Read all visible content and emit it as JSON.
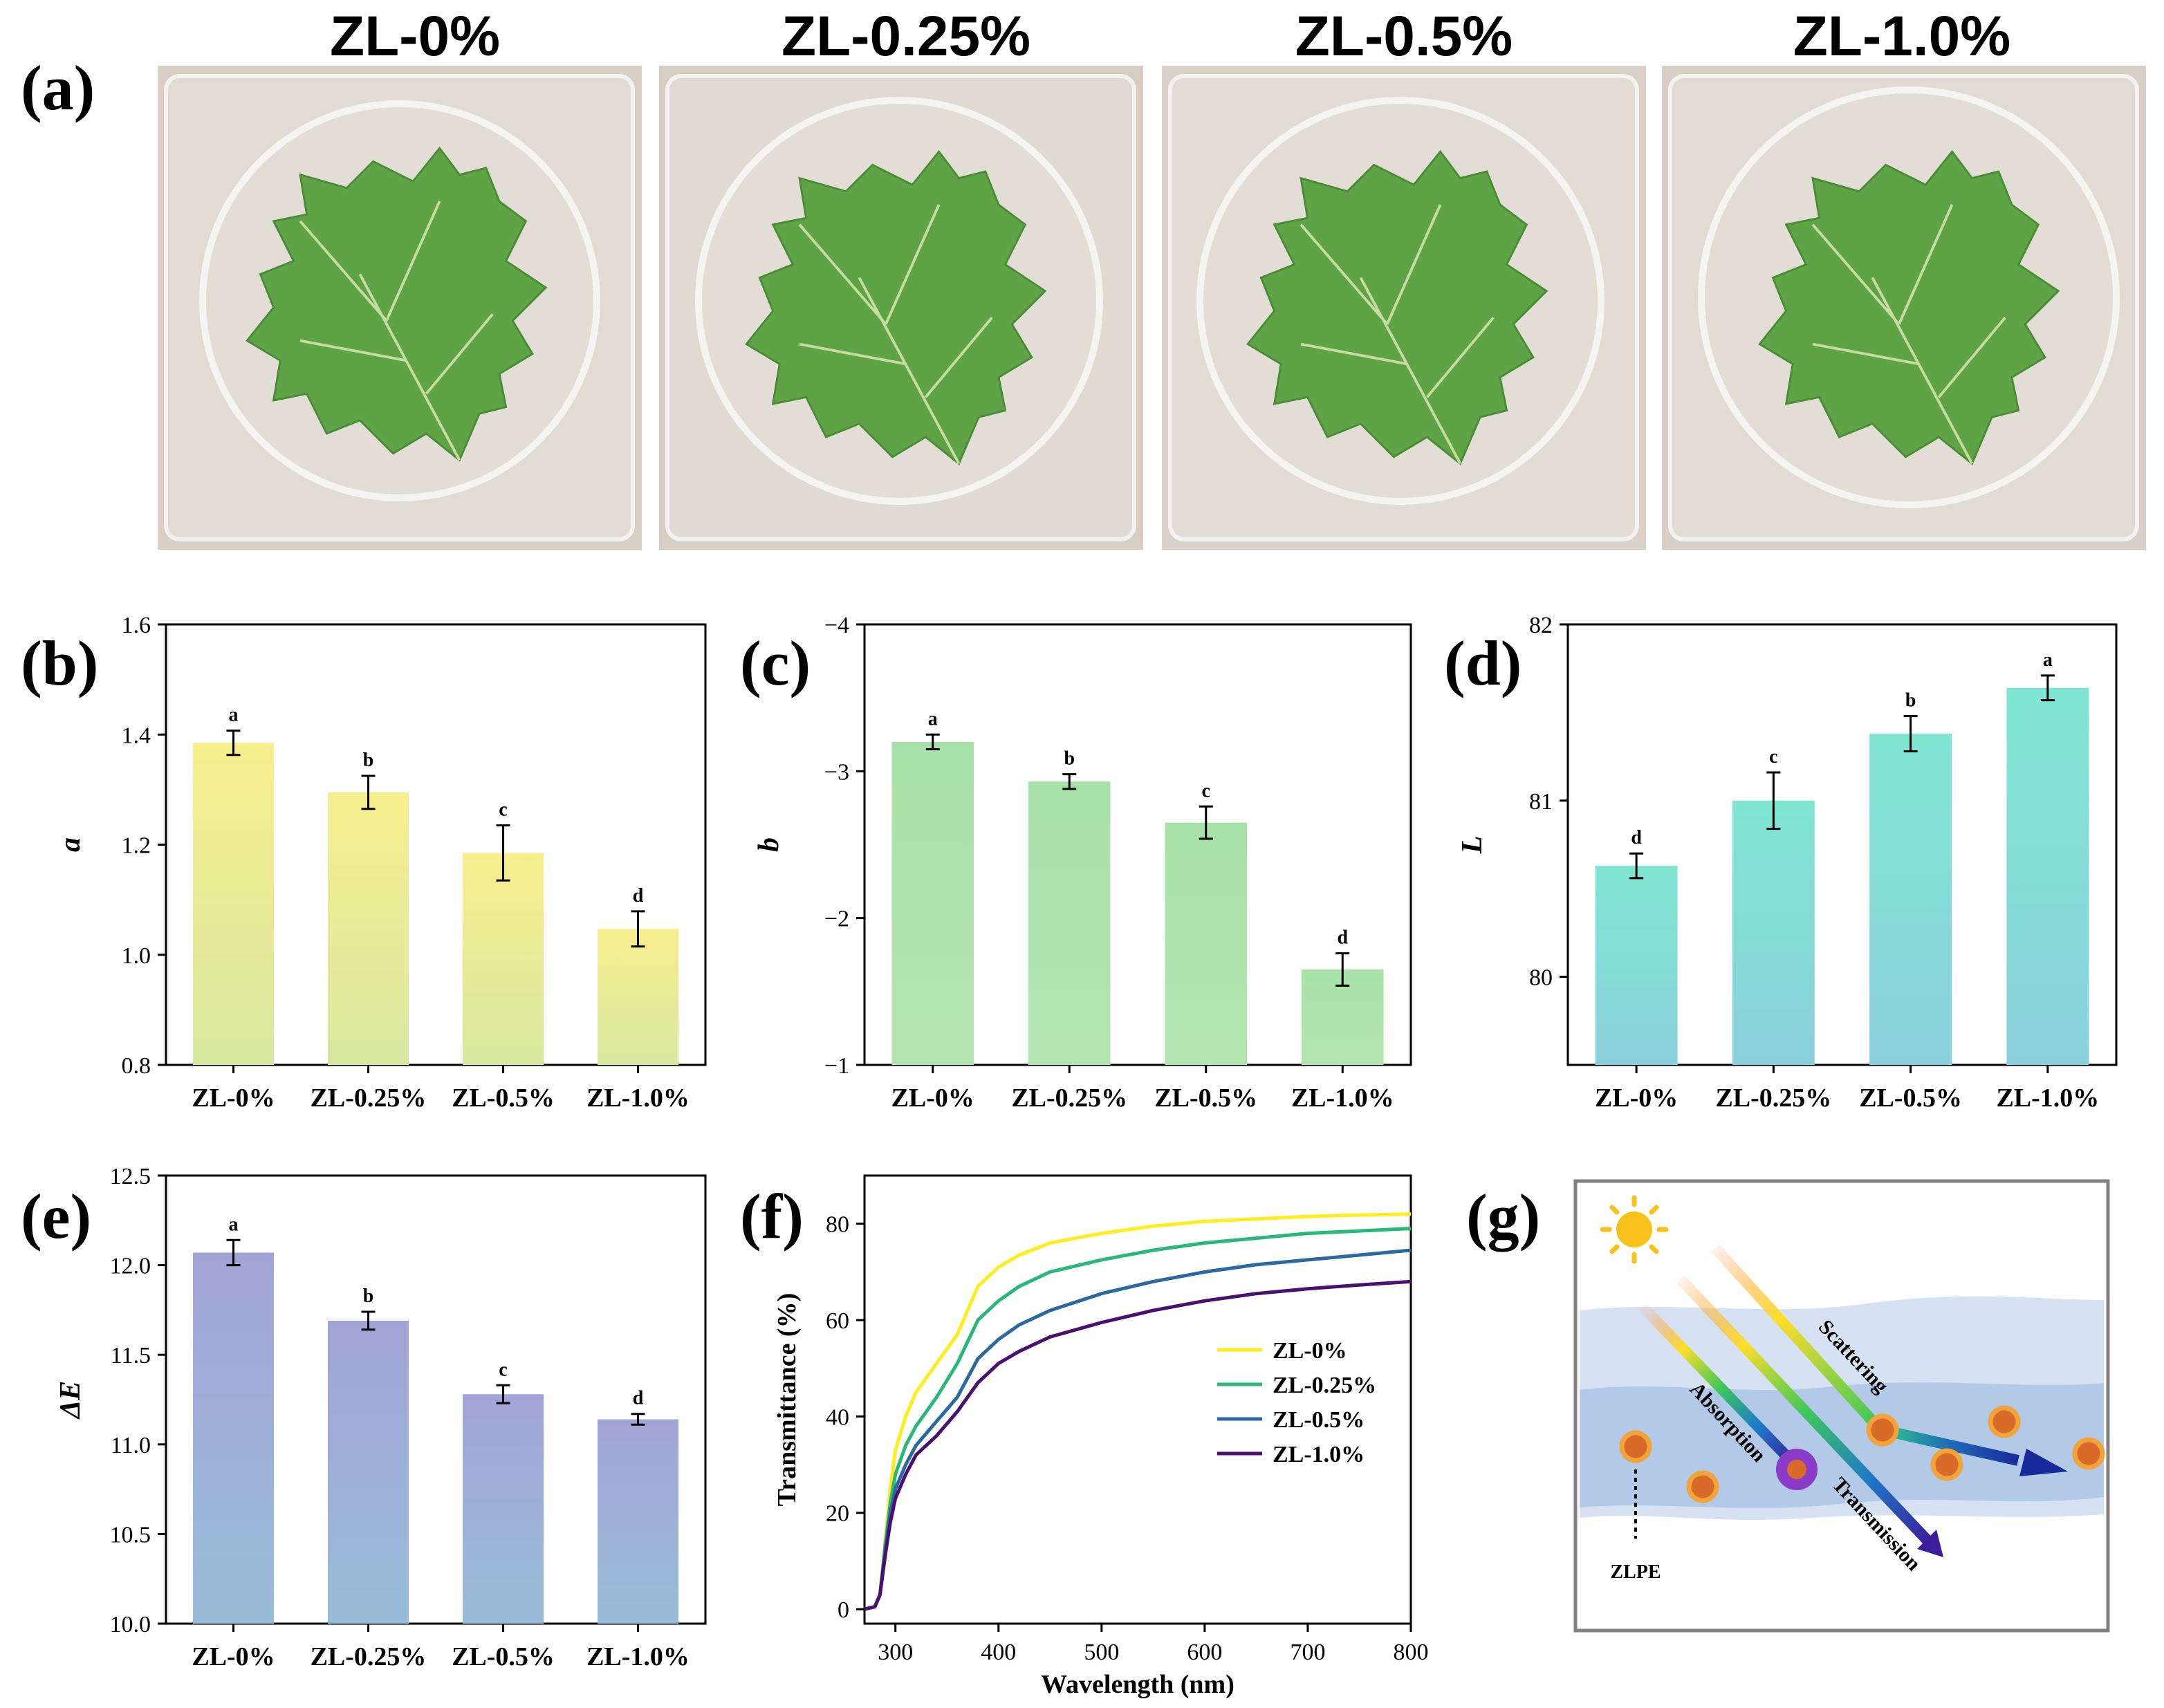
{
  "panel_labels": [
    "(a)",
    "(b)",
    "(c)",
    "(d)",
    "(e)",
    "(f)",
    "(g)"
  ],
  "photos": {
    "titles": [
      "ZL-0%",
      "ZL-0.25%",
      "ZL-0.5%",
      "ZL-1.0%"
    ],
    "colors": {
      "background": "#d8d0c5",
      "leaf": "#5ea446",
      "leaf_dark": "#4a8c36",
      "vein": "#c8dca0"
    }
  },
  "chart_data": [
    {
      "id": "b",
      "type": "bar",
      "categories": [
        "ZL-0%",
        "ZL-0.25%",
        "ZL-0.5%",
        "ZL-1.0%"
      ],
      "values": [
        1.385,
        1.295,
        1.185,
        1.047
      ],
      "errors": [
        0.022,
        0.03,
        0.05,
        0.032
      ],
      "letters": [
        "a",
        "b",
        "c",
        "d"
      ],
      "ylabel": "a",
      "ylim": [
        0.8,
        1.6
      ],
      "yticks": [
        0.8,
        1.0,
        1.2,
        1.4,
        1.6
      ],
      "ytick_labels": [
        "0.8",
        "1.0",
        "1.2",
        "1.4",
        "1.6"
      ],
      "reversed": false,
      "colors": {
        "top": "#f7ee8e",
        "bottom": "#d8e8a0"
      }
    },
    {
      "id": "c",
      "type": "bar",
      "categories": [
        "ZL-0%",
        "ZL-0.25%",
        "ZL-0.5%",
        "ZL-1.0%"
      ],
      "values": [
        -3.2,
        -2.93,
        -2.65,
        -1.65
      ],
      "errors": [
        0.05,
        0.05,
        0.11,
        0.11
      ],
      "letters": [
        "a",
        "b",
        "c",
        "d"
      ],
      "ylabel": "b",
      "ylim": [
        -1,
        -4
      ],
      "yticks": [
        -1,
        -2,
        -3,
        -4
      ],
      "ytick_labels": [
        "−1",
        "−2",
        "−3",
        "−4"
      ],
      "reversed": true,
      "colors": {
        "top": "#a8e2a8",
        "bottom": "#b2e4b2"
      }
    },
    {
      "id": "d",
      "type": "bar",
      "categories": [
        "ZL-0%",
        "ZL-0.25%",
        "ZL-0.5%",
        "ZL-1.0%"
      ],
      "values": [
        80.63,
        81.0,
        81.38,
        81.64
      ],
      "errors": [
        0.07,
        0.16,
        0.1,
        0.07
      ],
      "letters": [
        "d",
        "c",
        "b",
        "a"
      ],
      "ylabel": "L",
      "ylim": [
        79.5,
        82
      ],
      "yticks": [
        80,
        81,
        82
      ],
      "ytick_labels": [
        "80",
        "81",
        "82"
      ],
      "reversed": false,
      "colors": {
        "top": "#80e6d2",
        "bottom": "#8ad0dc"
      }
    },
    {
      "id": "e",
      "type": "bar",
      "categories": [
        "ZL-0%",
        "ZL-0.25%",
        "ZL-0.5%",
        "ZL-1.0%"
      ],
      "values": [
        12.07,
        11.69,
        11.28,
        11.14
      ],
      "errors": [
        0.07,
        0.05,
        0.05,
        0.03
      ],
      "letters": [
        "a",
        "b",
        "c",
        "d"
      ],
      "ylabel": "ΔE",
      "ylim": [
        10.0,
        12.5
      ],
      "yticks": [
        10.0,
        10.5,
        11.0,
        11.5,
        12.0,
        12.5
      ],
      "ytick_labels": [
        "10.0",
        "10.5",
        "11.0",
        "11.5",
        "12.0",
        "12.5"
      ],
      "reversed": false,
      "colors": {
        "top": "#a2a4d6",
        "bottom": "#98bcd8"
      }
    },
    {
      "id": "f",
      "type": "line",
      "xlabel": "Wavelength (nm)",
      "ylabel": "Transmittance (%)",
      "xlim": [
        270,
        800
      ],
      "ylim": [
        -3,
        90
      ],
      "xticks": [
        300,
        400,
        500,
        600,
        700,
        800
      ],
      "xtick_labels": [
        "300",
        "400",
        "500",
        "600",
        "700",
        "800"
      ],
      "yticks": [
        0,
        20,
        40,
        60,
        80
      ],
      "ytick_labels": [
        "0",
        "20",
        "40",
        "60",
        "80"
      ],
      "x": [
        270,
        280,
        285,
        290,
        295,
        300,
        310,
        320,
        340,
        360,
        380,
        390,
        400,
        420,
        450,
        500,
        550,
        600,
        650,
        700,
        750,
        800
      ],
      "series": [
        {
          "name": "ZL-0%",
          "color": "#ffee1e",
          "values": [
            0,
            0.5,
            3,
            14,
            25,
            33,
            40,
            45,
            51,
            57,
            67,
            69,
            71,
            73.5,
            76,
            78,
            79.5,
            80.5,
            81,
            81.5,
            81.8,
            82
          ]
        },
        {
          "name": "ZL-0.25%",
          "color": "#2ab87a",
          "values": [
            0,
            0.5,
            3,
            13,
            22,
            28,
            34,
            38,
            44,
            51,
            60,
            62,
            64,
            67,
            70,
            72.5,
            74.5,
            76,
            77,
            78,
            78.5,
            79
          ]
        },
        {
          "name": "ZL-0.5%",
          "color": "#2b6aa0",
          "values": [
            0,
            0.5,
            3,
            12,
            20,
            25,
            30,
            34,
            39,
            44,
            52,
            54,
            56,
            59,
            62,
            65.5,
            68,
            70,
            71.5,
            72.5,
            73.5,
            74.5
          ]
        },
        {
          "name": "ZL-1.0%",
          "color": "#4a1070",
          "values": [
            0,
            0.5,
            3,
            11,
            18,
            23,
            28,
            32,
            36,
            41,
            47,
            49,
            51,
            53.5,
            56.5,
            59.5,
            62,
            64,
            65.5,
            66.5,
            67.3,
            68
          ]
        }
      ]
    }
  ],
  "diagram_g": {
    "labels": {
      "scattering": "Scattering",
      "absorption": "Absorption",
      "transmission": "Transmission",
      "zlpe": "ZLPE"
    },
    "colors": {
      "sun": "#f9c21a",
      "film_light": "#d6e2f2",
      "film_dark": "#adc4e6",
      "particle_fill": "#d86a2a",
      "particle_ring": "#f2a33a",
      "absorber_ring": "#8a3cc8"
    }
  }
}
